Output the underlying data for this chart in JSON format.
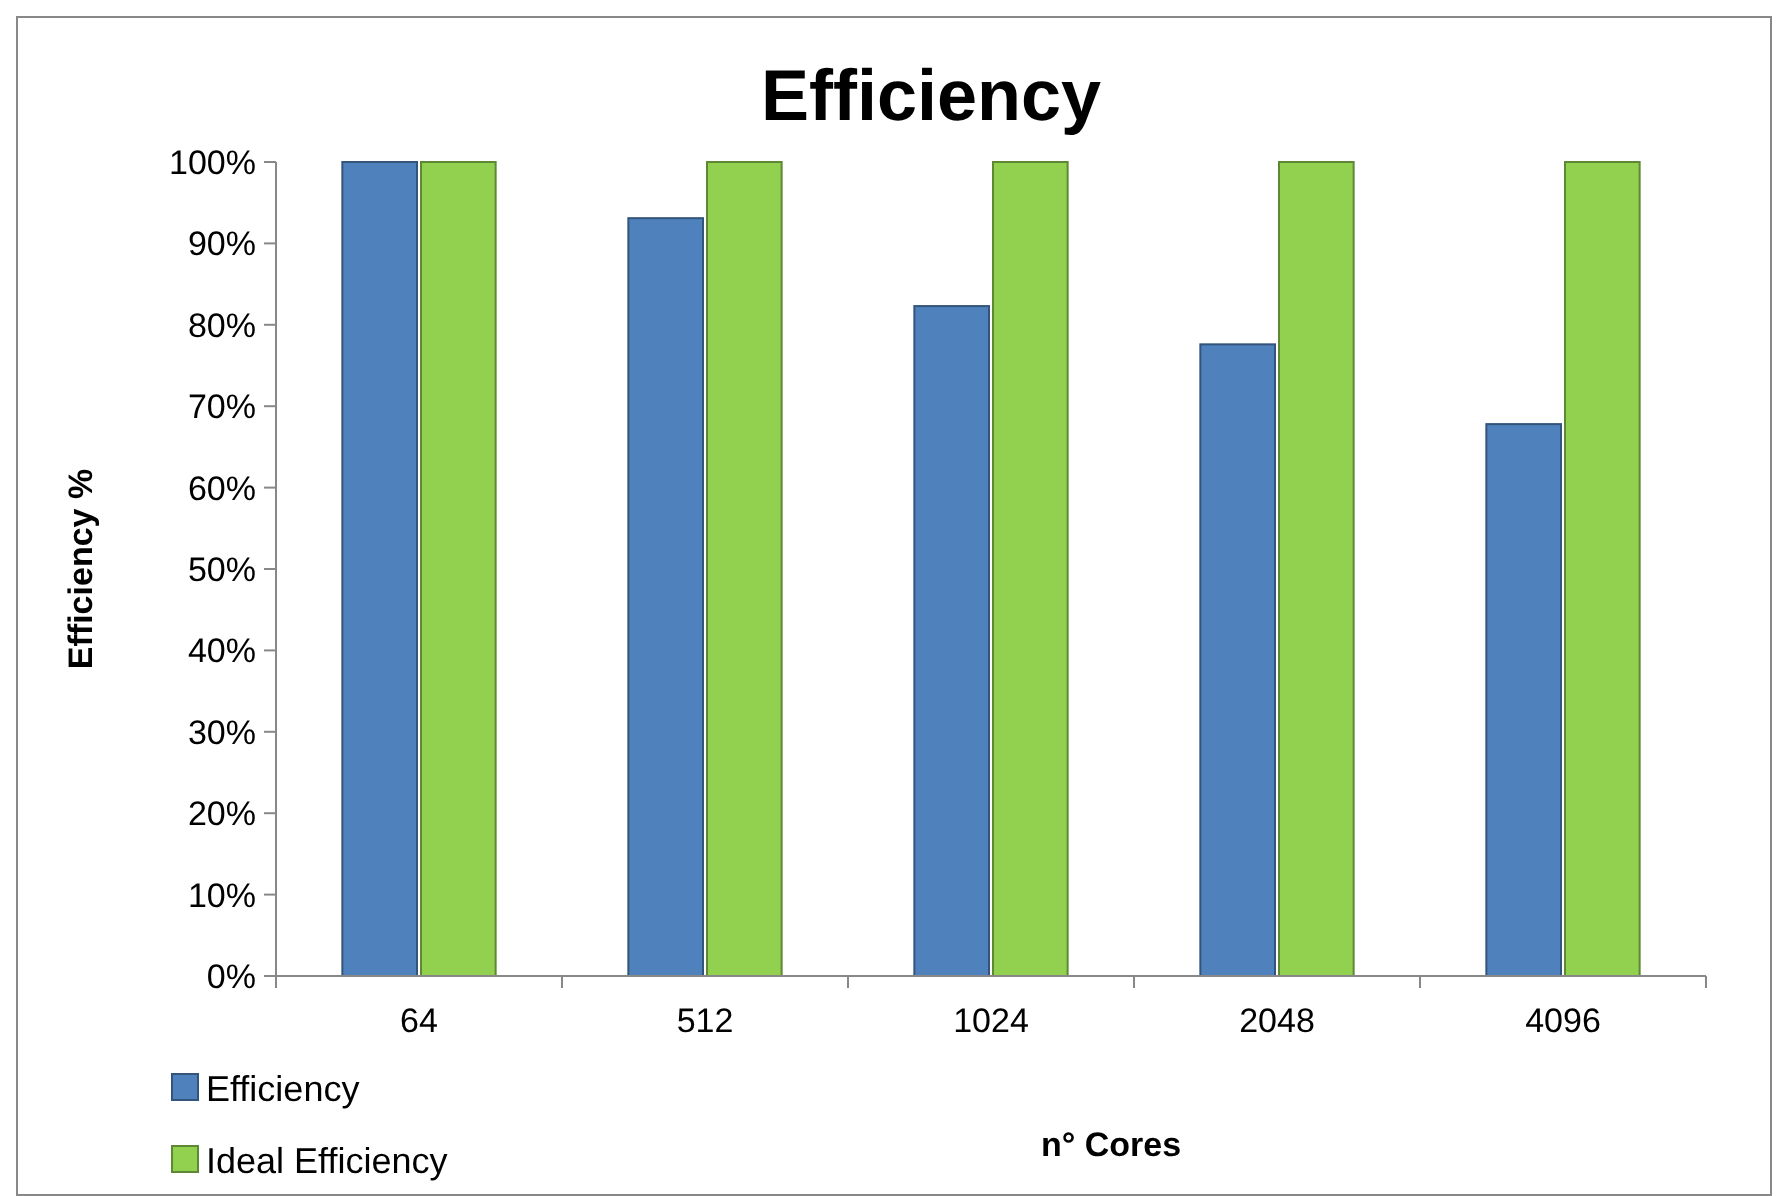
{
  "chart_data": {
    "type": "bar",
    "title": "Efficiency",
    "xlabel": "n° Cores",
    "ylabel": "Efficiency %",
    "categories": [
      "64",
      "512",
      "1024",
      "2048",
      "4096"
    ],
    "series": [
      {
        "name": "Efficiency",
        "color": "#4f81bd",
        "values": [
          100,
          93.1,
          82.3,
          77.6,
          67.8
        ]
      },
      {
        "name": "Ideal Efficiency",
        "color": "#92d050",
        "values": [
          100,
          100,
          100,
          100,
          100
        ]
      }
    ],
    "ylim": [
      0,
      100
    ],
    "yticks": [
      {
        "value": 0,
        "label": "0%"
      },
      {
        "value": 10,
        "label": "10%"
      },
      {
        "value": 20,
        "label": "20%"
      },
      {
        "value": 30,
        "label": "30%"
      },
      {
        "value": 40,
        "label": "40%"
      },
      {
        "value": 50,
        "label": "50%"
      },
      {
        "value": 60,
        "label": "60%"
      },
      {
        "value": 70,
        "label": "70%"
      },
      {
        "value": 80,
        "label": "80%"
      },
      {
        "value": 90,
        "label": "90%"
      },
      {
        "value": 100,
        "label": "100%"
      }
    ],
    "grid": false,
    "legend": "bottom left"
  }
}
